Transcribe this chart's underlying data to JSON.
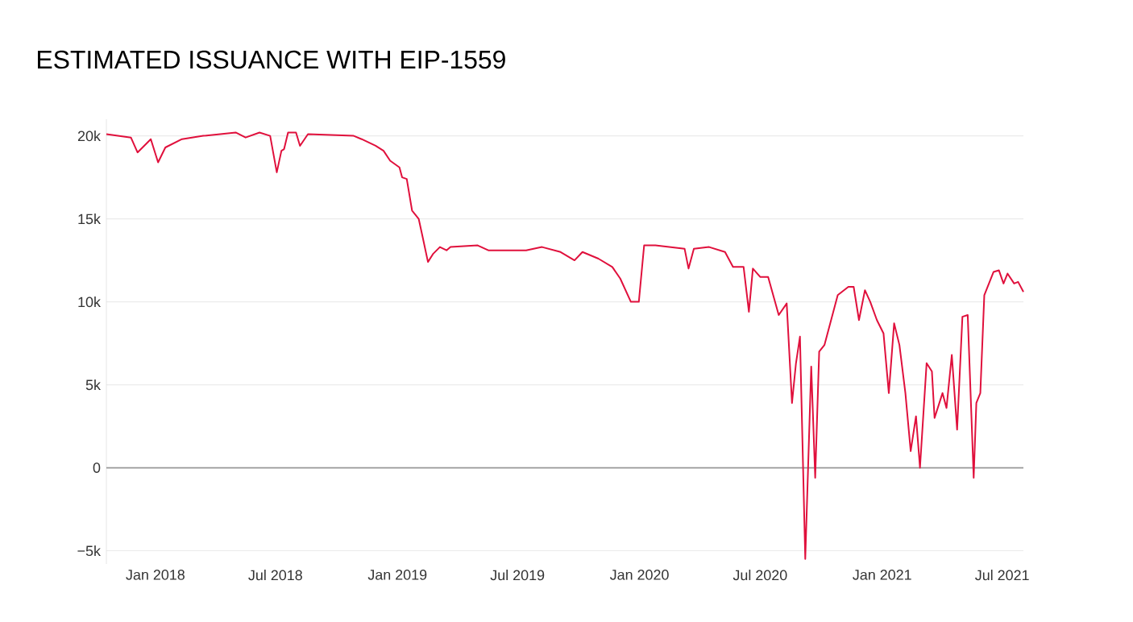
{
  "chart_data": {
    "type": "line",
    "title": "ESTIMATED ISSUANCE WITH EIP-1559",
    "x": [
      "2017-10-19",
      "2017-11-25",
      "2017-12-05",
      "2017-12-15",
      "2017-12-25",
      "2018-01-05",
      "2018-01-16",
      "2018-02-10",
      "2018-03-14",
      "2018-05-02",
      "2018-05-17",
      "2018-06-07",
      "2018-06-23",
      "2018-07-03",
      "2018-07-10",
      "2018-07-14",
      "2018-07-20",
      "2018-08-01",
      "2018-08-07",
      "2018-08-19",
      "2018-10-27",
      "2018-11-08",
      "2018-11-29",
      "2018-12-11",
      "2018-12-21",
      "2019-01-04",
      "2019-01-08",
      "2019-01-15",
      "2019-01-23",
      "2019-02-02",
      "2019-02-08",
      "2019-02-16",
      "2019-02-24",
      "2019-03-06",
      "2019-03-16",
      "2019-03-22",
      "2019-05-02",
      "2019-05-18",
      "2019-07-14",
      "2019-08-07",
      "2019-09-04",
      "2019-09-25",
      "2019-10-07",
      "2019-10-31",
      "2019-11-21",
      "2019-12-03",
      "2019-12-19",
      "2019-12-31",
      "2020-01-08",
      "2020-01-25",
      "2020-03-09",
      "2020-03-15",
      "2020-03-23",
      "2020-04-15",
      "2020-05-09",
      "2020-05-21",
      "2020-06-06",
      "2020-06-14",
      "2020-06-20",
      "2020-07-01",
      "2020-07-13",
      "2020-07-29",
      "2020-08-10",
      "2020-08-18",
      "2020-08-24",
      "2020-08-30",
      "2020-09-07",
      "2020-09-16",
      "2020-09-22",
      "2020-09-28",
      "2020-10-06",
      "2020-10-26",
      "2020-11-11",
      "2020-11-19",
      "2020-11-27",
      "2020-12-06",
      "2020-12-14",
      "2020-12-24",
      "2021-01-03",
      "2021-01-11",
      "2021-01-19",
      "2021-01-27",
      "2021-02-05",
      "2021-02-13",
      "2021-02-21",
      "2021-02-27",
      "2021-03-09",
      "2021-03-17",
      "2021-03-21",
      "2021-04-02",
      "2021-04-08",
      "2021-04-16",
      "2021-04-24",
      "2021-05-02",
      "2021-05-10",
      "2021-05-19",
      "2021-05-23",
      "2021-05-29",
      "2021-06-04",
      "2021-06-18",
      "2021-06-26",
      "2021-07-03",
      "2021-07-09",
      "2021-07-19",
      "2021-07-25",
      "2021-08-02"
    ],
    "series": [
      {
        "color": "#e0103c",
        "values": [
          20100,
          19900,
          19000,
          19400,
          19800,
          18400,
          19300,
          19800,
          20000,
          20200,
          19900,
          20200,
          20000,
          17800,
          19100,
          19200,
          20200,
          20200,
          19400,
          20100,
          20000,
          19800,
          19400,
          19100,
          18500,
          18100,
          17500,
          17400,
          15500,
          15000,
          13900,
          12400,
          12900,
          13300,
          13100,
          13300,
          13400,
          13100,
          13100,
          13300,
          13000,
          12500,
          13000,
          12600,
          12100,
          11400,
          10000,
          10000,
          13400,
          13400,
          13200,
          12000,
          13200,
          13300,
          13000,
          12100,
          12100,
          9400,
          12000,
          11500,
          11500,
          9200,
          9900,
          3900,
          6300,
          7900,
          -5500,
          6100,
          -600,
          7000,
          7400,
          10400,
          10900,
          10900,
          8900,
          10700,
          10000,
          8900,
          8100,
          4500,
          8700,
          7400,
          4500,
          1000,
          3100,
          0,
          6300,
          5800,
          3000,
          4500,
          3600,
          6800,
          2300,
          9100,
          9200,
          -600,
          3900,
          4500,
          10400,
          11800,
          11900,
          11100,
          11700,
          11100,
          11200,
          10600
        ]
      }
    ],
    "xlim": [
      "2017-10-19",
      "2021-08-02"
    ],
    "xticks": [
      {
        "value": "2018-01-01",
        "label": "Jan 2018"
      },
      {
        "value": "2018-07-01",
        "label": "Jul 2018"
      },
      {
        "value": "2019-01-01",
        "label": "Jan 2019"
      },
      {
        "value": "2019-07-01",
        "label": "Jul 2019"
      },
      {
        "value": "2020-01-01",
        "label": "Jan 2020"
      },
      {
        "value": "2020-07-01",
        "label": "Jul 2020"
      },
      {
        "value": "2021-01-01",
        "label": "Jan 2021"
      },
      {
        "value": "2021-07-01",
        "label": "Jul 2021"
      }
    ],
    "ylim": [
      -5800,
      21000
    ],
    "yticks": [
      {
        "value": -5000,
        "label": "−5k"
      },
      {
        "value": 0,
        "label": "0"
      },
      {
        "value": 5000,
        "label": "5k"
      },
      {
        "value": 10000,
        "label": "10k"
      },
      {
        "value": 15000,
        "label": "15k"
      },
      {
        "value": 20000,
        "label": "20k"
      }
    ],
    "grid": "y",
    "ref_lines": [
      {
        "axis": "y",
        "value": 0,
        "color": "#9a9a9a"
      }
    ]
  }
}
